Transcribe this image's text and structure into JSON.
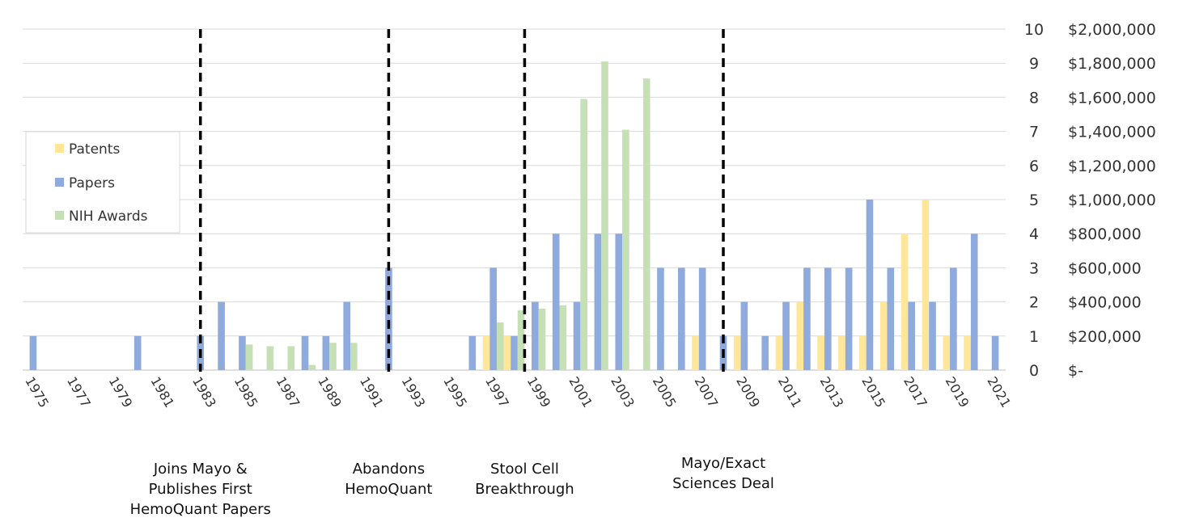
{
  "chart_data": {
    "type": "bar",
    "years": [
      1975,
      1976,
      1977,
      1978,
      1979,
      1980,
      1981,
      1982,
      1983,
      1984,
      1985,
      1986,
      1987,
      1988,
      1989,
      1990,
      1991,
      1992,
      1993,
      1994,
      1995,
      1996,
      1997,
      1998,
      1999,
      2000,
      2001,
      2002,
      2003,
      2004,
      2005,
      2006,
      2007,
      2008,
      2009,
      2010,
      2011,
      2012,
      2013,
      2014,
      2015,
      2016,
      2017,
      2018,
      2019,
      2020,
      2021
    ],
    "x_tick_labels": [
      "1975",
      "1977",
      "1979",
      "1981",
      "1983",
      "1985",
      "1987",
      "1989",
      "1991",
      "1993",
      "1995",
      "1997",
      "1999",
      "2001",
      "2003",
      "2005",
      "2007",
      "2009",
      "2011",
      "2013",
      "2015",
      "2017",
      "2019",
      "2021"
    ],
    "y_ticks_count": [
      "0",
      "1",
      "2",
      "3",
      "4",
      "5",
      "6",
      "7",
      "8",
      "9",
      "10"
    ],
    "y_ticks_dollars": [
      "$-",
      "$200,000",
      "$400,000",
      "$600,000",
      "$800,000",
      "$1,000,000",
      "$1,200,000",
      "$1,400,000",
      "$1,600,000",
      "$1,800,000",
      "$2,000,000"
    ],
    "ylim": [
      0,
      10
    ],
    "ylim_dollars": [
      0,
      2000000
    ],
    "series": [
      {
        "name": "Patents",
        "color": "#FFE699",
        "axis": "count",
        "values": [
          0,
          0,
          0,
          0,
          0,
          0,
          0,
          0,
          0,
          0,
          0,
          0,
          0,
          0,
          0,
          0,
          0,
          0,
          0,
          0,
          0,
          0,
          1,
          1,
          0,
          0,
          0,
          0,
          0,
          0,
          0,
          0,
          1,
          0,
          1,
          0,
          1,
          2,
          1,
          1,
          1,
          2,
          4,
          5,
          1,
          1,
          0
        ]
      },
      {
        "name": "Papers",
        "color": "#8FAADC",
        "axis": "count",
        "values": [
          1,
          0,
          0,
          0,
          0,
          1,
          0,
          0,
          1,
          2,
          1,
          0,
          0,
          1,
          1,
          2,
          0,
          3,
          0,
          0,
          0,
          1,
          3,
          1,
          2,
          4,
          2,
          4,
          4,
          0,
          3,
          3,
          3,
          1,
          2,
          1,
          2,
          3,
          3,
          3,
          5,
          3,
          2,
          2,
          3,
          4,
          1
        ]
      },
      {
        "name": "NIH Awards",
        "color": "#C5E0B4",
        "axis": "dollars",
        "values": [
          0,
          0,
          0,
          0,
          0,
          0,
          0,
          0,
          0,
          0,
          150000,
          140000,
          140000,
          30000,
          160000,
          160000,
          0,
          0,
          0,
          0,
          0,
          0,
          280000,
          350000,
          360000,
          380000,
          1590000,
          1810000,
          1410000,
          1710000,
          0,
          0,
          0,
          0,
          0,
          0,
          0,
          0,
          0,
          0,
          0,
          0,
          0,
          0,
          0,
          0,
          0
        ]
      }
    ],
    "legend": {
      "placement": "left"
    },
    "grid": true,
    "milestones": [
      {
        "year": 1983,
        "lines": [
          "Joins Mayo &",
          "Publishes First",
          "HemoQuant Papers"
        ]
      },
      {
        "year": 1992,
        "lines": [
          "Abandons",
          "HemoQuant"
        ]
      },
      {
        "year": 1998.5,
        "lines": [
          "Stool Cell",
          "Breakthrough"
        ]
      },
      {
        "year": 2008,
        "lines": [
          "Mayo/Exact",
          "Sciences Deal"
        ]
      }
    ]
  }
}
